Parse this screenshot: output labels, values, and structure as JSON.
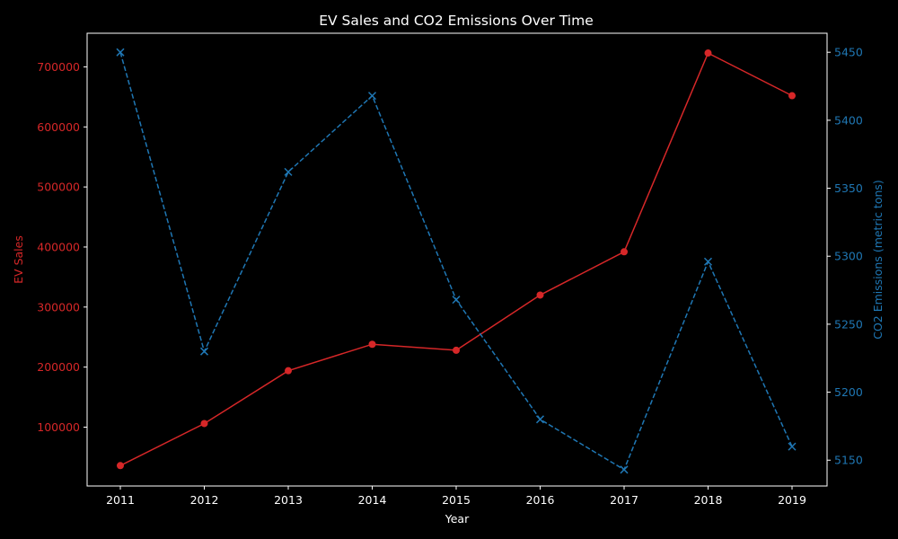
{
  "chart_data": {
    "type": "line",
    "title": "EV Sales and CO2 Emissions Over Time",
    "xlabel": "Year",
    "categories": [
      "2011",
      "2012",
      "2013",
      "2014",
      "2015",
      "2016",
      "2017",
      "2018",
      "2019"
    ],
    "x": [
      2011,
      2012,
      2013,
      2014,
      2015,
      2016,
      2017,
      2018,
      2019
    ],
    "left_axis": {
      "label": "EV Sales",
      "color": "#d62728",
      "ylim": [
        2000,
        756000
      ],
      "ticks": [
        100000,
        200000,
        300000,
        400000,
        500000,
        600000,
        700000
      ],
      "tick_labels": [
        "100000",
        "200000",
        "300000",
        "400000",
        "500000",
        "600000",
        "700000"
      ]
    },
    "right_axis": {
      "label": "CO2 Emissions (metric tons)",
      "color": "#1f77b4",
      "ylim": [
        5131,
        5464
      ],
      "ticks": [
        5150,
        5200,
        5250,
        5300,
        5350,
        5400,
        5450
      ],
      "tick_labels": [
        "5150",
        "5200",
        "5250",
        "5300",
        "5350",
        "5400",
        "5450"
      ]
    },
    "series": [
      {
        "name": "EV Sales",
        "axis": "left",
        "color": "#d62728",
        "marker": "circle",
        "linestyle": "solid",
        "values": [
          36000,
          106000,
          194000,
          238000,
          228000,
          320000,
          392000,
          723000,
          652000
        ]
      },
      {
        "name": "CO2 Emissions (metric tons)",
        "axis": "right",
        "color": "#1f77b4",
        "marker": "x",
        "linestyle": "dashed",
        "values": [
          5450,
          5230,
          5362,
          5418,
          5268,
          5180,
          5143,
          5296,
          5160
        ]
      }
    ],
    "grid": false,
    "legend": "none"
  }
}
